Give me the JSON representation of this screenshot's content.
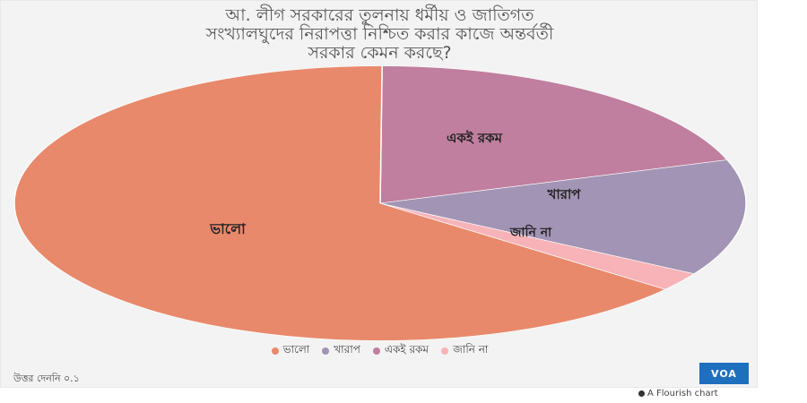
{
  "chart_data": {
    "type": "pie",
    "title_lines": [
      "আ. লীগ সরকারের তুলনায় ধর্মীয় ও জাতিগত",
      "সংখ্যালঘুদের নিরাপত্তা নিশ্চিত করার কাজে অন্তর্বর্তী",
      "সরকার কেমন করছে?"
    ],
    "slices": [
      {
        "label": "ভালো",
        "value": 64.3,
        "color": "#e8896b"
      },
      {
        "label": "খারাপ",
        "value": 13.7,
        "color": "#a294b4"
      },
      {
        "label": "একই রকম",
        "value": 19.8,
        "color": "#c07f9e"
      },
      {
        "label": "জানি না",
        "value": 2.2,
        "color": "#f7b3b8"
      }
    ],
    "legend_placement": "bottom",
    "source_note": "উত্তর দেননি ০.১"
  },
  "logo_text": "VOA",
  "credit_text": "A Flourish chart"
}
